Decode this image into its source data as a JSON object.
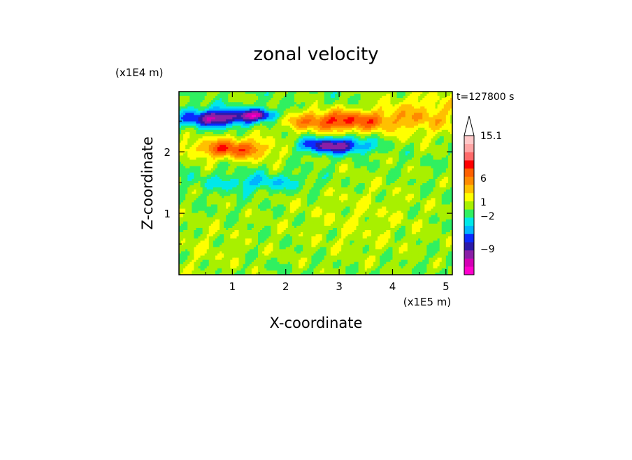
{
  "chart_data": {
    "type": "heatmap",
    "title": "zonal velocity",
    "xlabel": "X-coordinate",
    "ylabel": "Z-coordinate",
    "x_unit": "(x1E5 m)",
    "y_unit": "(x1E4 m)",
    "time_label": "t=127800 s",
    "xlim": [
      0,
      5.12
    ],
    "ylim": [
      0,
      2.98
    ],
    "x_ticks": [
      "1",
      "2",
      "3",
      "4",
      "5"
    ],
    "x_tick_values": [
      1,
      2,
      3,
      4,
      5
    ],
    "y_ticks": [
      "1",
      "2"
    ],
    "y_tick_values": [
      1,
      2
    ],
    "colorbar": {
      "levels": [
        {
          "color": "#ff00cc"
        },
        {
          "color": "#d400b4"
        },
        {
          "color": "#8a1fa6"
        },
        {
          "color": "#2c1aa8"
        },
        {
          "color": "#0a2aff"
        },
        {
          "color": "#00b4ff"
        },
        {
          "color": "#00e8e8"
        },
        {
          "color": "#30f060"
        },
        {
          "color": "#a8f000"
        },
        {
          "color": "#ffff00"
        },
        {
          "color": "#ffc000"
        },
        {
          "color": "#ff8a00"
        },
        {
          "color": "#ff6000"
        },
        {
          "color": "#ff0000"
        },
        {
          "color": "#ff6a6a"
        },
        {
          "color": "#ffa5a5"
        },
        {
          "color": "#ffc8c8"
        }
      ],
      "labels": [
        "15.1",
        "6",
        "1",
        "−2",
        "−9"
      ],
      "label_values": [
        15.1,
        6,
        1,
        -2,
        -9
      ],
      "vmin": -14.5,
      "vmax": 15.1,
      "extend": "max"
    },
    "fields": [
      {
        "name": "upper-jet-negative",
        "value": -10.5,
        "x": 0.7,
        "z": 2.55,
        "sx": 0.45,
        "sz": 0.1
      },
      {
        "name": "upper-jet-negative-2",
        "value": -9,
        "x": 1.5,
        "z": 2.6,
        "sx": 0.25,
        "sz": 0.07
      },
      {
        "name": "upper-jet-positive",
        "value": 9,
        "x": 3.0,
        "z": 2.5,
        "sx": 0.7,
        "sz": 0.12
      },
      {
        "name": "mid-jet-positive",
        "value": 8.5,
        "x": 1.0,
        "z": 2.05,
        "sx": 0.55,
        "sz": 0.12
      },
      {
        "name": "mid-jet-negative",
        "value": -10,
        "x": 2.9,
        "z": 2.1,
        "sx": 0.45,
        "sz": 0.09
      },
      {
        "name": "right-positive",
        "value": 4,
        "x": 4.6,
        "z": 2.6,
        "sx": 0.6,
        "sz": 0.25
      },
      {
        "name": "lower-field-positive",
        "value": 1.5,
        "x": 3.4,
        "z": 0.9,
        "sx": 1.1,
        "sz": 0.55
      },
      {
        "name": "lower-left-positive",
        "value": 1.2,
        "x": 0.5,
        "z": 0.4,
        "sx": 0.7,
        "sz": 0.4
      },
      {
        "name": "mid-negative-band",
        "value": -3.5,
        "x": 1.5,
        "z": 1.5,
        "sx": 0.7,
        "sz": 0.1
      }
    ]
  }
}
